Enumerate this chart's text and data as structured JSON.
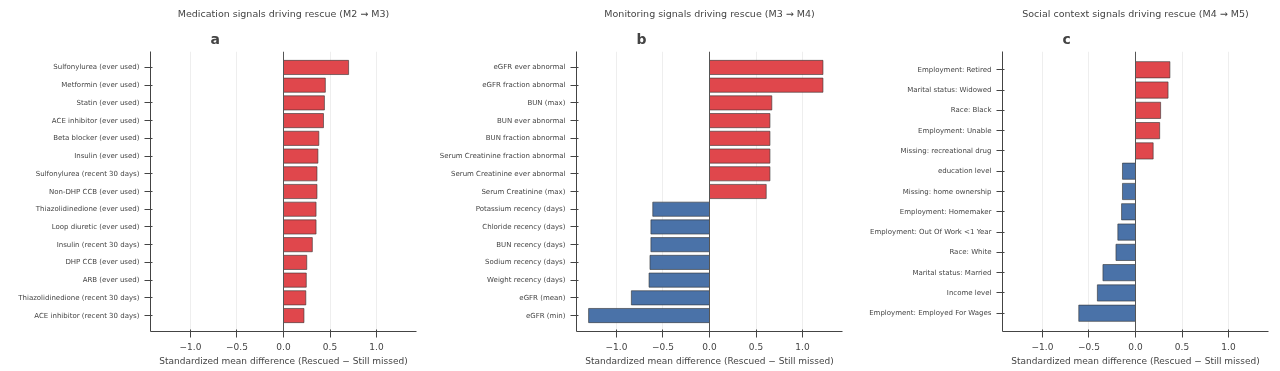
{
  "chart_data": [
    {
      "type": "bar",
      "orientation": "horizontal",
      "annotations": [
        "a"
      ],
      "title": "Medication signals driving rescue (M2 → M3)",
      "xlabel": "Standardized mean difference (Rescued − Still missed)",
      "categories": [
        "Sulfonylurea (ever used)",
        "Metformin (ever used)",
        "Statin (ever used)",
        "ACE inhibitor (ever used)",
        "Beta blocker (ever used)",
        "Insulin (ever used)",
        "Sulfonylurea (recent 30 days)",
        "Non-DHP CCB (ever used)",
        "Thiazolidinedione (ever used)",
        "Loop diuretic (ever used)",
        "Insulin (recent 30 days)",
        "DHP CCB (ever used)",
        "ARB (ever used)",
        "Thiazolidinedione (recent 30 days)",
        "ACE inhibitor (recent 30 days)"
      ],
      "values": [
        0.7,
        0.45,
        0.44,
        0.43,
        0.38,
        0.37,
        0.36,
        0.36,
        0.35,
        0.35,
        0.31,
        0.25,
        0.245,
        0.24,
        0.22
      ],
      "colors": [
        "#e0474c",
        "#e0474c",
        "#e0474c",
        "#e0474c",
        "#e0474c",
        "#e0474c",
        "#e0474c",
        "#e0474c",
        "#e0474c",
        "#e0474c",
        "#e0474c",
        "#e0474c",
        "#e0474c",
        "#e0474c",
        "#e0474c"
      ],
      "xlim": [
        -1.43,
        1.43
      ],
      "xticks": [
        {
          "value": -1.0,
          "label": "−1.0"
        },
        {
          "value": -0.5,
          "label": "−0.5"
        },
        {
          "value": 0,
          "label": "0.0"
        },
        {
          "value": 0.5,
          "label": "0.5"
        },
        {
          "value": 1.0,
          "label": "1.0"
        }
      ],
      "grid": "x",
      "ref_lines": [
        {
          "axis": "x",
          "value": 0,
          "label": null,
          "color": "#555555"
        }
      ]
    },
    {
      "type": "bar",
      "orientation": "horizontal",
      "annotations": [
        "b"
      ],
      "title": "Monitoring signals driving rescue (M3 → M4)",
      "xlabel": "Standardized mean difference (Rescued − Still missed)",
      "categories": [
        "eGFR ever abnormal",
        "eGFR fraction abnormal",
        "BUN (max)",
        "BUN ever abnormal",
        "BUN fraction abnormal",
        "Serum Creatinine fraction abnormal",
        "Serum Creatinine ever abnormal",
        "Serum Creatinine (max)",
        "Potassium recency (days)",
        "Chloride recency (days)",
        "BUN recency (days)",
        "Sodium recency (days)",
        "Weight recency (days)",
        "eGFR (mean)",
        "eGFR (min)"
      ],
      "values": [
        1.22,
        1.22,
        0.67,
        0.65,
        0.65,
        0.65,
        0.65,
        0.61,
        -0.61,
        -0.63,
        -0.63,
        -0.64,
        -0.65,
        -0.84,
        -1.3
      ],
      "colors": [
        "#e0474c",
        "#e0474c",
        "#e0474c",
        "#e0474c",
        "#e0474c",
        "#e0474c",
        "#e0474c",
        "#e0474c",
        "#4a72a8",
        "#4a72a8",
        "#4a72a8",
        "#4a72a8",
        "#4a72a8",
        "#4a72a8",
        "#4a72a8"
      ],
      "xlim": [
        -1.43,
        1.43
      ],
      "xticks": [
        {
          "value": -1.0,
          "label": "−1.0"
        },
        {
          "value": -0.5,
          "label": "−0.5"
        },
        {
          "value": 0,
          "label": "0.0"
        },
        {
          "value": 0.5,
          "label": "0.5"
        },
        {
          "value": 1.0,
          "label": "1.0"
        }
      ],
      "grid": "x",
      "ref_lines": [
        {
          "axis": "x",
          "value": 0,
          "label": null,
          "color": "#555555"
        }
      ]
    },
    {
      "type": "bar",
      "orientation": "horizontal",
      "annotations": [
        "c"
      ],
      "title": "Social context signals driving rescue (M4 → M5)",
      "xlabel": "Standardized mean difference (Rescued − Still missed)",
      "categories": [
        "Employment: Retired",
        "Marital status: Widowed",
        "Race: Black",
        "Employment: Unable",
        "Missing: recreational drug",
        "education level",
        "Missing: home ownership",
        "Employment: Homemaker",
        "Employment: Out Of Work <1 Year",
        "Race: White",
        "Marital status: Married",
        "Income level",
        "Employment: Employed For Wages"
      ],
      "values": [
        0.37,
        0.35,
        0.27,
        0.26,
        0.19,
        -0.14,
        -0.14,
        -0.15,
        -0.19,
        -0.21,
        -0.35,
        -0.41,
        -0.61
      ],
      "colors": [
        "#e0474c",
        "#e0474c",
        "#e0474c",
        "#e0474c",
        "#e0474c",
        "#4a72a8",
        "#4a72a8",
        "#4a72a8",
        "#4a72a8",
        "#4a72a8",
        "#4a72a8",
        "#4a72a8",
        "#4a72a8"
      ],
      "xlim": [
        -1.43,
        1.43
      ],
      "xticks": [
        {
          "value": -1.0,
          "label": "−1.0"
        },
        {
          "value": -0.5,
          "label": "−0.5"
        },
        {
          "value": 0,
          "label": "0.0"
        },
        {
          "value": 0.5,
          "label": "0.5"
        },
        {
          "value": 1.0,
          "label": "1.0"
        }
      ],
      "grid": "x",
      "ref_lines": [
        {
          "axis": "x",
          "value": 0,
          "label": null,
          "color": "#555555"
        }
      ]
    }
  ]
}
